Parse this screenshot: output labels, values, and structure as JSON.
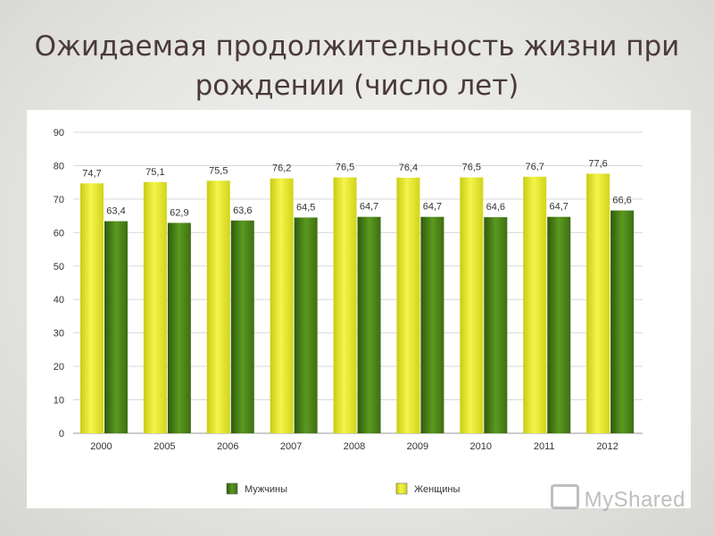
{
  "slide": {
    "title": "Ожидаемая продолжительность жизни при рождении (число лет)",
    "watermark": "MyShared"
  },
  "colors": {
    "women": "#e8e832",
    "men": "#4f8a1a",
    "grid": "#d9d9d9",
    "axis_text": "#333333"
  },
  "chart_data": {
    "type": "bar",
    "categories": [
      "2000",
      "2005",
      "2006",
      "2007",
      "2008",
      "2009",
      "2010",
      "2011",
      "2012"
    ],
    "series": [
      {
        "name": "Женщины",
        "values": [
          74.7,
          75.1,
          75.5,
          76.2,
          76.5,
          76.4,
          76.5,
          76.7,
          77.6
        ],
        "labels": [
          "74,7",
          "75,1",
          "75,5",
          "76,2",
          "76,5",
          "76,4",
          "76,5",
          "76,7",
          "77,6"
        ]
      },
      {
        "name": "Мужчины",
        "values": [
          63.4,
          62.9,
          63.6,
          64.5,
          64.7,
          64.7,
          64.6,
          64.7,
          66.6
        ],
        "labels": [
          "63,4",
          "62,9",
          "63,6",
          "64,5",
          "64,7",
          "64,7",
          "64,6",
          "64,7",
          "66,6"
        ]
      }
    ],
    "legend": [
      "Мужчины",
      "Женщины"
    ],
    "legend_position": "bottom",
    "ylim": [
      0,
      90
    ],
    "yticks": [
      0,
      10,
      20,
      30,
      40,
      50,
      60,
      70,
      80,
      90
    ],
    "grid": true,
    "xlabel": "",
    "ylabel": ""
  }
}
